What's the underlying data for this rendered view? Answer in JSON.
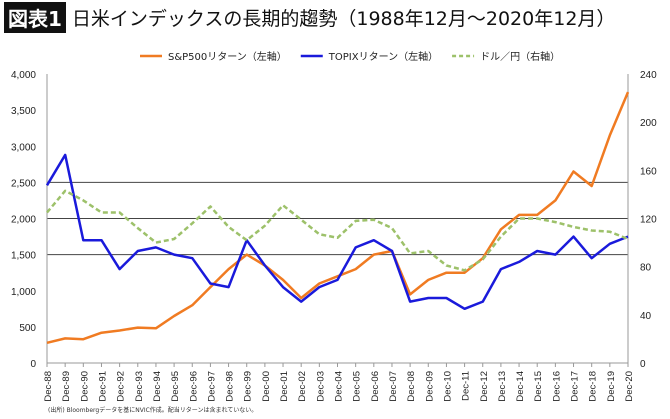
{
  "title": {
    "badge": "図表1",
    "text": "日米インデックスの長期的趨勢（1988年12月～2020年12月）"
  },
  "note": "(出所) Bloombergデータを基にNVIC作成。配当リターンは含まれていない。",
  "chart_data": {
    "type": "line",
    "legend_position": "top",
    "x_ticks": [
      "Dec-88",
      "Dec-89",
      "Dec-90",
      "Dec-91",
      "Dec-92",
      "Dec-93",
      "Dec-94",
      "Dec-95",
      "Dec-96",
      "Dec-97",
      "Dec-98",
      "Dec-99",
      "Dec-00",
      "Dec-01",
      "Dec-02",
      "Dec-03",
      "Dec-04",
      "Dec-05",
      "Dec-06",
      "Dec-07",
      "Dec-08",
      "Dec-09",
      "Dec-10",
      "Dec-11",
      "Dec-12",
      "Dec-13",
      "Dec-14",
      "Dec-15",
      "Dec-16",
      "Dec-17",
      "Dec-18",
      "Dec-19",
      "Dec-20"
    ],
    "y_left": {
      "range": [
        0,
        4000
      ],
      "ticks": [
        "0",
        "500",
        "1,000",
        "1,500",
        "2,000",
        "2,500",
        "3,000",
        "3,500",
        "4,000"
      ]
    },
    "y_right": {
      "range": [
        0,
        240
      ],
      "ticks": [
        "0",
        "40",
        "80",
        "120",
        "160",
        "200",
        "240"
      ]
    },
    "gridlines_left": [
      1500,
      2000,
      2500
    ],
    "series": [
      {
        "name": "S&P500リターン（左軸）",
        "axis": "left",
        "color": "#f07b22",
        "dash": false,
        "values": [
          280,
          340,
          330,
          420,
          450,
          490,
          480,
          650,
          800,
          1050,
          1300,
          1500,
          1350,
          1150,
          900,
          1100,
          1200,
          1300,
          1500,
          1550,
          950,
          1150,
          1250,
          1250,
          1450,
          1850,
          2050,
          2050,
          2250,
          2650,
          2450,
          3150,
          3750
        ]
      },
      {
        "name": "TOPIXリターン（左軸）",
        "axis": "left",
        "color": "#1a1adb",
        "dash": false,
        "values": [
          2460,
          2880,
          1700,
          1700,
          1300,
          1550,
          1600,
          1500,
          1450,
          1100,
          1050,
          1700,
          1350,
          1050,
          850,
          1050,
          1150,
          1600,
          1700,
          1550,
          850,
          900,
          900,
          750,
          850,
          1300,
          1400,
          1550,
          1500,
          1750,
          1450,
          1650,
          1750
        ]
      },
      {
        "name": "ドル／円（右軸）",
        "axis": "right",
        "color": "#9dc16a",
        "dash": true,
        "values": [
          125,
          143,
          135,
          125,
          125,
          112,
          100,
          103,
          116,
          130,
          113,
          102,
          114,
          131,
          119,
          107,
          104,
          118,
          119,
          112,
          91,
          93,
          81,
          77,
          86,
          105,
          120,
          120,
          117,
          113,
          110,
          109,
          103
        ]
      }
    ]
  }
}
